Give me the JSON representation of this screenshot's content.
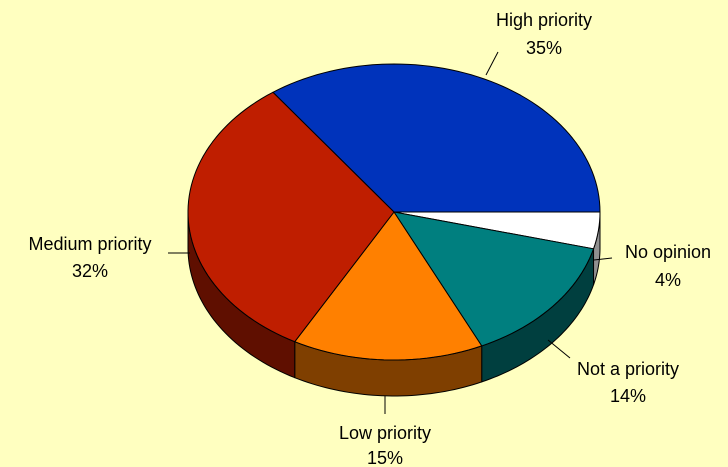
{
  "chart_data": {
    "type": "pie",
    "style": "3d",
    "background_color": "#FFFFC0",
    "slices": [
      {
        "label": "High priority",
        "value": 35,
        "value_label": "35%",
        "color": "#0033BB",
        "side_color": "#001A66"
      },
      {
        "label": "No opinion",
        "value": 4,
        "value_label": "4%",
        "color": "#FFFFFF",
        "side_color": "#909090"
      },
      {
        "label": "Not a priority",
        "value": 14,
        "value_label": "14%",
        "color": "#007F7F",
        "side_color": "#003F3F"
      },
      {
        "label": "Low priority",
        "value": 15,
        "value_label": "15%",
        "color": "#FF8000",
        "side_color": "#7F3F00"
      },
      {
        "label": "Medium priority",
        "value": 32,
        "value_label": "32%",
        "color": "#BF1E00",
        "side_color": "#5F0F00"
      }
    ]
  }
}
